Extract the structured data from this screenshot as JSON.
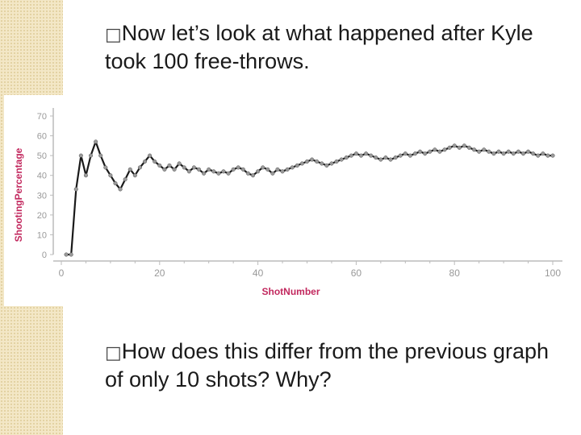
{
  "slide": {
    "bullet_marker": "□",
    "bullet1": "Now let’s look at what happened after Kyle took 100 free-throws.",
    "bullet2": "How does this differ from the previous graph of only 10 shots?  Why?"
  },
  "colors": {
    "accent_label": "#c2285e",
    "line": "#1a1a1a",
    "marker": "#9a9a9a",
    "axis": "#bbbbbb",
    "tick_text": "#999999",
    "side_strip": "#f3e7c6"
  },
  "chart_data": {
    "type": "line",
    "xlabel": "ShotNumber",
    "ylabel": "ShootingPercentage",
    "xlim": [
      0,
      100
    ],
    "ylim": [
      0,
      70
    ],
    "xticks": [
      0,
      20,
      40,
      60,
      80,
      100
    ],
    "yticks": [
      0,
      10,
      20,
      30,
      40,
      50,
      60,
      70
    ],
    "grid": false,
    "series": [
      {
        "x": [
          1,
          2,
          3,
          4,
          5,
          6,
          7,
          8,
          9,
          10,
          11,
          12,
          13,
          14,
          15,
          16,
          17,
          18,
          19,
          20,
          21,
          22,
          23,
          24,
          25,
          26,
          27,
          28,
          29,
          30,
          31,
          32,
          33,
          34,
          35,
          36,
          37,
          38,
          39,
          40,
          41,
          42,
          43,
          44,
          45,
          46,
          47,
          48,
          49,
          50,
          51,
          52,
          53,
          54,
          55,
          56,
          57,
          58,
          59,
          60,
          61,
          62,
          63,
          64,
          65,
          66,
          67,
          68,
          69,
          70,
          71,
          72,
          73,
          74,
          75,
          76,
          77,
          78,
          79,
          80,
          81,
          82,
          83,
          84,
          85,
          86,
          87,
          88,
          89,
          90,
          91,
          92,
          93,
          94,
          95,
          96,
          97,
          98,
          99,
          100
        ],
        "values": [
          0,
          0,
          33,
          50,
          40,
          50,
          57,
          50,
          44,
          40,
          36,
          33,
          38,
          43,
          40,
          44,
          47,
          50,
          47,
          45,
          43,
          45,
          43,
          46,
          44,
          42,
          44,
          43,
          41,
          43,
          42,
          41,
          42,
          41,
          43,
          44,
          43,
          41,
          40,
          42,
          44,
          43,
          41,
          43,
          42,
          43,
          44,
          45,
          46,
          47,
          48,
          47,
          46,
          45,
          46,
          47,
          48,
          49,
          50,
          51,
          50,
          51,
          50,
          49,
          48,
          49,
          48,
          49,
          50,
          51,
          50,
          51,
          52,
          51,
          52,
          53,
          52,
          53,
          54,
          55,
          54,
          55,
          54,
          53,
          52,
          53,
          52,
          51,
          52,
          51,
          52,
          51,
          52,
          51,
          52,
          51,
          50,
          51,
          50,
          50
        ]
      }
    ]
  }
}
